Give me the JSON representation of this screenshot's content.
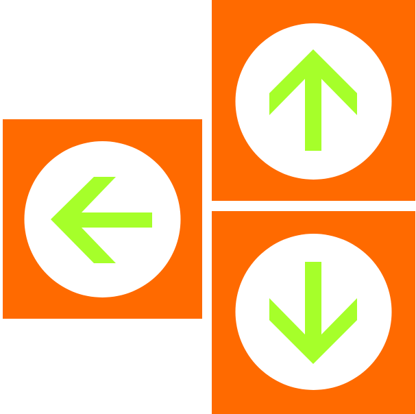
{
  "colors": {
    "background": "#ffffff",
    "tile": "#ff6a00",
    "circle": "#ffffff",
    "arrow": "#a6ff2a"
  },
  "tiles": [
    {
      "id": "left",
      "icon": "arrow-left-icon"
    },
    {
      "id": "up",
      "icon": "arrow-up-icon"
    },
    {
      "id": "down",
      "icon": "arrow-down-icon"
    }
  ]
}
